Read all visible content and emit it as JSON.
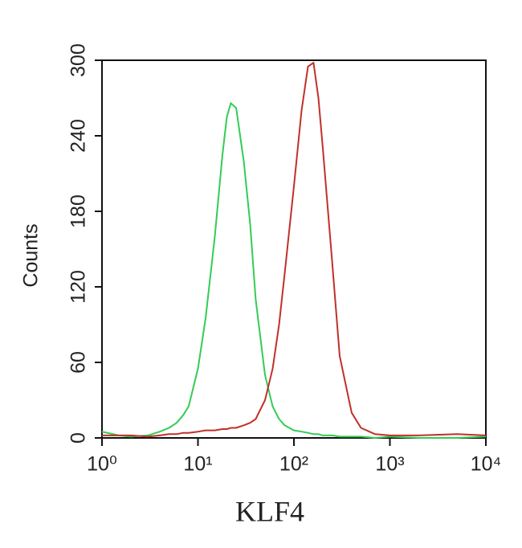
{
  "chart_data": {
    "type": "line",
    "xlabel": "KLF4",
    "ylabel": "Counts",
    "xscale": "log",
    "xlim": [
      1,
      10000
    ],
    "ylim": [
      0,
      300
    ],
    "xticks": [
      {
        "value": 1,
        "label": "10⁰"
      },
      {
        "value": 10,
        "label": "10¹"
      },
      {
        "value": 100,
        "label": "10²"
      },
      {
        "value": 1000,
        "label": "10³"
      },
      {
        "value": 10000,
        "label": "10⁴"
      }
    ],
    "yticks": [
      0,
      60,
      120,
      180,
      240,
      300
    ],
    "x": [
      1,
      1.5,
      2,
      3,
      4,
      5,
      6,
      7,
      8,
      10,
      12,
      15,
      18,
      20,
      22,
      25,
      30,
      35,
      40,
      50,
      60,
      70,
      80,
      100,
      120,
      140,
      160,
      180,
      200,
      250,
      300,
      400,
      500,
      700,
      1000,
      2000,
      5000,
      10000
    ],
    "series": [
      {
        "color": "#33cc55",
        "values": [
          5,
          2,
          1,
          2,
          5,
          8,
          12,
          18,
          25,
          55,
          95,
          160,
          225,
          255,
          266,
          262,
          220,
          170,
          110,
          50,
          25,
          15,
          10,
          6,
          5,
          4,
          3,
          3,
          2,
          2,
          1,
          1,
          1,
          0,
          1,
          0,
          0,
          1
        ]
      },
      {
        "color": "#c0302a",
        "values": [
          2,
          2,
          2,
          1,
          2,
          3,
          3,
          4,
          4,
          5,
          6,
          6,
          7,
          7,
          8,
          8,
          10,
          12,
          15,
          30,
          55,
          90,
          130,
          200,
          260,
          295,
          298,
          270,
          230,
          140,
          65,
          20,
          8,
          3,
          2,
          2,
          3,
          2
        ]
      }
    ]
  }
}
